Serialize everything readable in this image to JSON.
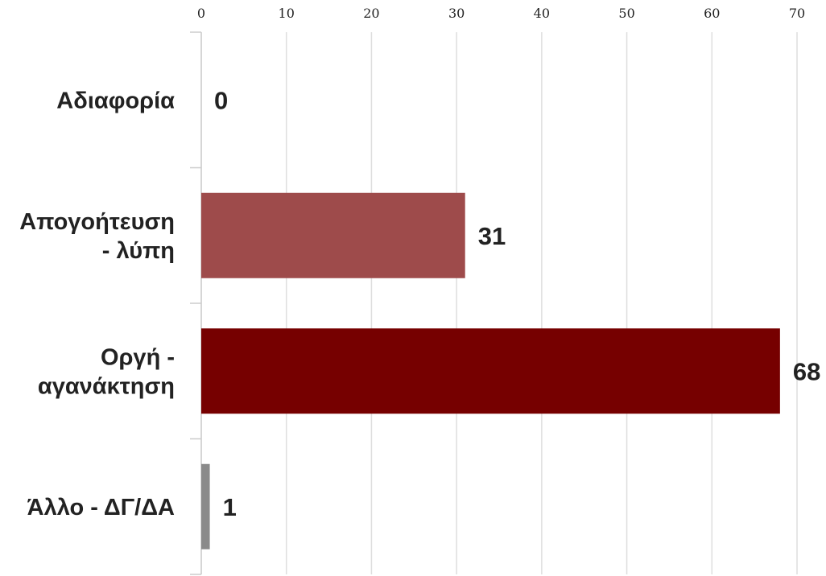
{
  "chart_data": {
    "type": "bar",
    "orientation": "horizontal",
    "categories": [
      [
        "Αδιαφορία"
      ],
      [
        "Απογοήτευση",
        "- λύπη"
      ],
      [
        "Οργή -",
        "αγανάκτηση"
      ],
      [
        "Άλλο - ΔΓ/ΔΑ"
      ]
    ],
    "values": [
      0,
      31,
      68,
      1
    ],
    "value_labels": [
      "0",
      "31",
      "68",
      "1"
    ],
    "bar_colors": [
      "#a04f4f",
      "#9e4b4b",
      "#760000",
      "#8a8a8a"
    ],
    "xlim": [
      0,
      70
    ],
    "xticks": [
      0,
      10,
      20,
      30,
      40,
      50,
      60,
      70
    ],
    "xaxis_position": "top",
    "grid": true,
    "title": "",
    "xlabel": "",
    "ylabel": ""
  }
}
